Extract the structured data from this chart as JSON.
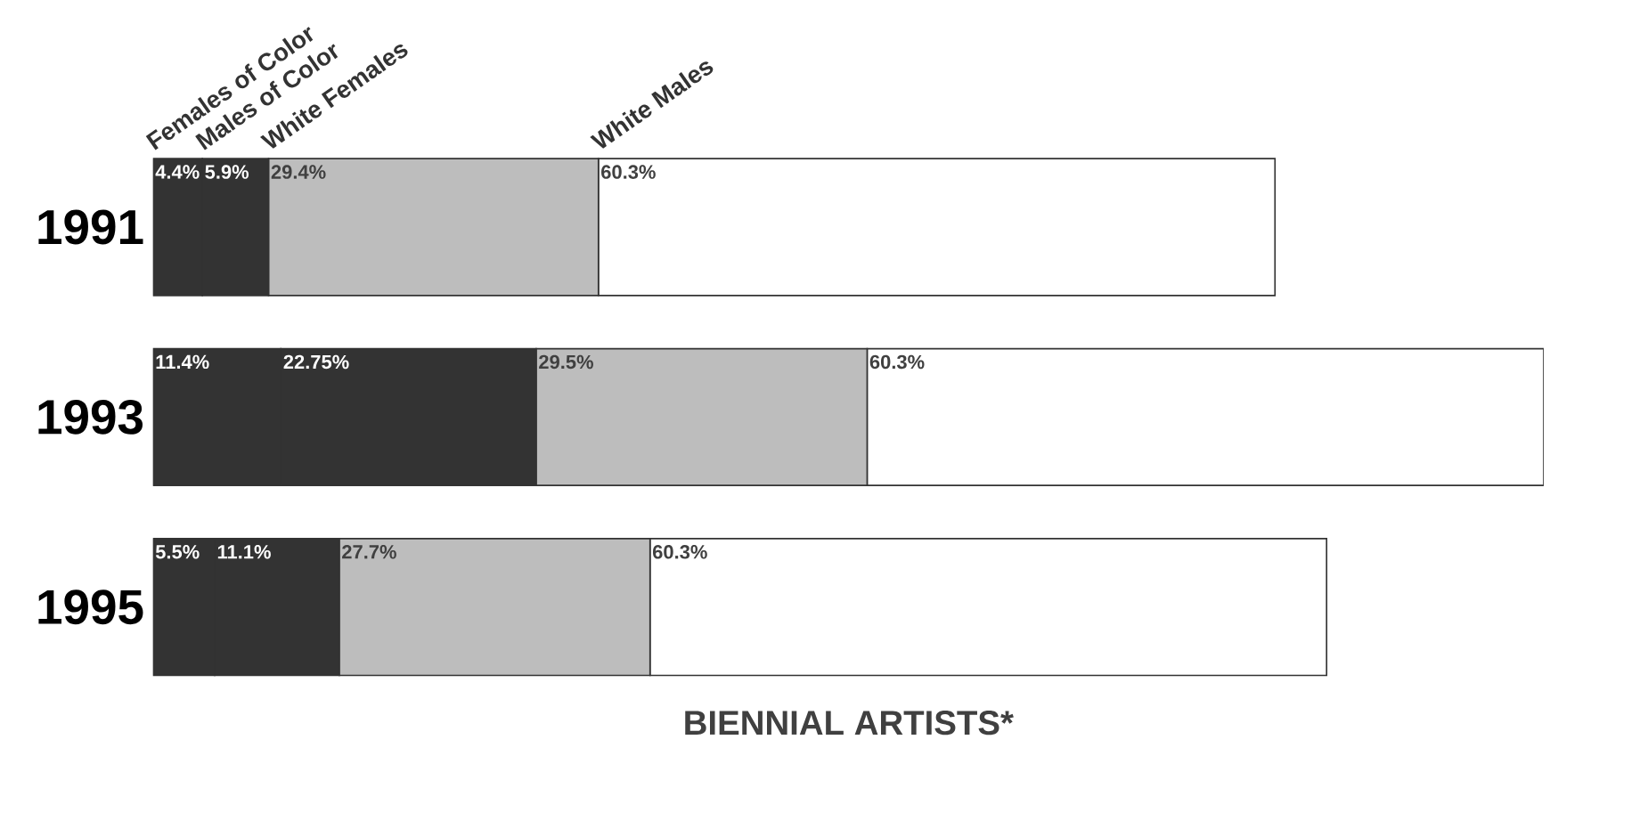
{
  "chart_data": {
    "type": "bar",
    "orientation": "horizontal",
    "stacked": true,
    "xlabel": "BIENNIAL ARTISTS*",
    "categories": [
      "1991",
      "1993",
      "1995"
    ],
    "tick_labels": "y",
    "series": [
      {
        "name": "Females of Color",
        "color": "#333333",
        "values": [
          4.4,
          11.4,
          5.5
        ],
        "value_labels": [
          "4.4%",
          "11.4%",
          "5.5%"
        ]
      },
      {
        "name": "Males of Color",
        "color": "#333333",
        "values": [
          5.9,
          22.75,
          11.1
        ],
        "value_labels": [
          "5.9%",
          "22.75%",
          "11.1%"
        ]
      },
      {
        "name": "White Females",
        "color": "#bdbdbd",
        "values": [
          29.4,
          29.5,
          27.7
        ],
        "value_labels": [
          "29.4%",
          "29.5%",
          "27.7%"
        ]
      },
      {
        "name": "White Males",
        "color": "#ffffff",
        "values": [
          60.3,
          60.3,
          60.3
        ],
        "value_labels": [
          "60.3%",
          "60.3%",
          "60.3%"
        ]
      }
    ]
  }
}
